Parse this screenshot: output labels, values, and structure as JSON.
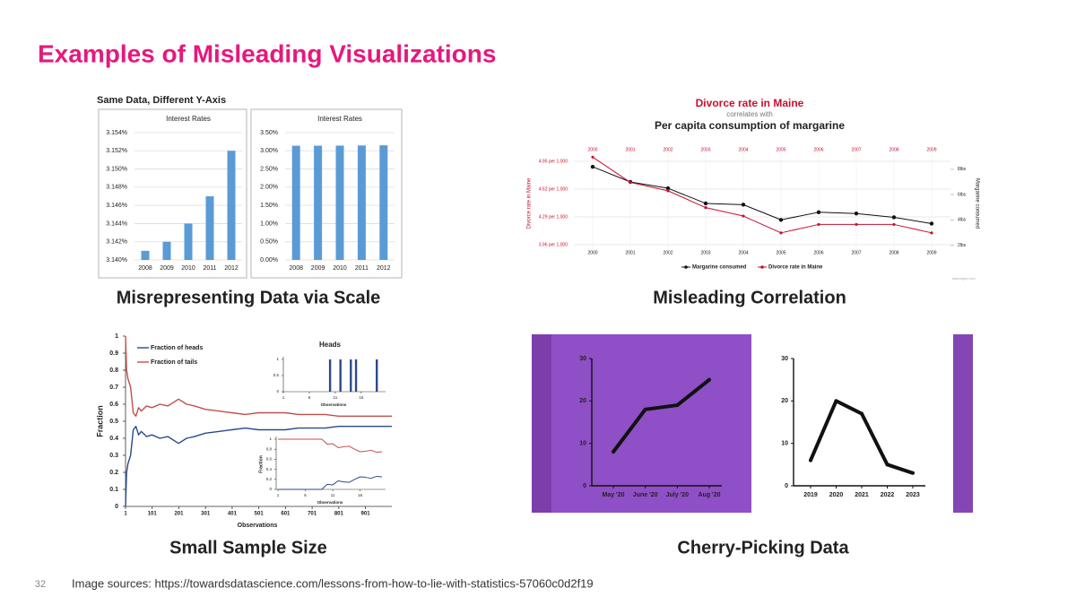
{
  "title": "Examples of Misleading Visualizations",
  "panels": [
    {
      "caption": "Misrepresenting Data via Scale",
      "heading": "Same Data, Different Y-Axis",
      "chart_data": [
        {
          "type": "bar",
          "title": "Interest Rates",
          "categories": [
            "2008",
            "2009",
            "2010",
            "2011",
            "2012"
          ],
          "values": [
            3.141,
            3.142,
            3.144,
            3.147,
            3.152
          ],
          "color": "#5b9bd5",
          "ylim": [
            3.14,
            3.154
          ],
          "yticks": [
            {
              "value": 3.14,
              "label": "3.140%"
            },
            {
              "value": 3.142,
              "label": "3.142%"
            },
            {
              "value": 3.144,
              "label": "3.144%"
            },
            {
              "value": 3.146,
              "label": "3.146%"
            },
            {
              "value": 3.148,
              "label": "3.148%"
            },
            {
              "value": 3.15,
              "label": "3.150%"
            },
            {
              "value": 3.152,
              "label": "3.152%"
            },
            {
              "value": 3.154,
              "label": "3.154%"
            }
          ],
          "grid": true
        },
        {
          "type": "bar",
          "title": "Interest Rates",
          "categories": [
            "2008",
            "2009",
            "2010",
            "2011",
            "2012"
          ],
          "values": [
            3.141,
            3.142,
            3.144,
            3.147,
            3.152
          ],
          "color": "#5b9bd5",
          "ylim": [
            0,
            3.5
          ],
          "yticks": [
            {
              "value": 0,
              "label": "0.00%"
            },
            {
              "value": 0.5,
              "label": "0.50%"
            },
            {
              "value": 1,
              "label": "1.00%"
            },
            {
              "value": 1.5,
              "label": "1.50%"
            },
            {
              "value": 2,
              "label": "2.00%"
            },
            {
              "value": 2.5,
              "label": "2.50%"
            },
            {
              "value": 3,
              "label": "3.00%"
            },
            {
              "value": 3.5,
              "label": "3.50%"
            }
          ],
          "grid": true
        }
      ]
    },
    {
      "caption": "Misleading Correlation",
      "chart_data": {
        "type": "line",
        "title": "Divorce rate in Maine",
        "connector": "correlates with",
        "subtitle": "Per capita consumption of margarine",
        "x": [
          2000,
          2001,
          2002,
          2003,
          2004,
          2005,
          2006,
          2007,
          2008,
          2009
        ],
        "xlim": [
          1999.5,
          2009.5
        ],
        "ylabel": "Divorce rate in Maine",
        "y2label": "Margarine consumed",
        "series": [
          {
            "name": "Margarine consumed",
            "color": "#111111",
            "axis": "y2",
            "values": [
              8.2,
              7.0,
              6.5,
              5.3,
              5.2,
              4.0,
              4.6,
              4.5,
              4.2,
              3.7
            ]
          },
          {
            "name": "Divorce rate in Maine",
            "color": "#c8102e",
            "values": [
              5.0,
              4.7,
              4.6,
              4.4,
              4.3,
              4.1,
              4.2,
              4.2,
              4.2,
              4.1
            ]
          }
        ],
        "ylim": [
          3.85,
          5.05
        ],
        "yticks": [
          {
            "value": 3.96,
            "label": "3.96 per 1,000"
          },
          {
            "value": 4.29,
            "label": "4.29 per 1,000"
          },
          {
            "value": 4.62,
            "label": "4.62 per 1,000"
          },
          {
            "value": 4.95,
            "label": "4.95 per 1,000"
          }
        ],
        "y2lim": [
          1.3,
          9.3
        ],
        "y2ticks": [
          {
            "value": 2,
            "label": "2lbs"
          },
          {
            "value": 4,
            "label": "4lbs"
          },
          {
            "value": 6,
            "label": "6lbs"
          },
          {
            "value": 8,
            "label": "8lbs"
          }
        ],
        "grid": true,
        "source": "tylervigen.com"
      }
    },
    {
      "caption": "Small Sample Size",
      "chart_data": [
        {
          "type": "line",
          "xlabel": "Observations",
          "ylabel": "Fraction",
          "x": [
            1,
            5,
            10,
            20,
            30,
            40,
            50,
            60,
            80,
            100,
            130,
            160,
            200,
            230,
            260,
            300,
            350,
            400,
            450,
            500,
            550,
            600,
            650,
            700,
            750,
            800,
            850,
            900,
            950,
            1000
          ],
          "series": [
            {
              "name": "Fraction of heads",
              "color": "#2b4a8a",
              "values": [
                0,
                0.2,
                0.25,
                0.3,
                0.45,
                0.47,
                0.42,
                0.44,
                0.41,
                0.42,
                0.4,
                0.41,
                0.37,
                0.4,
                0.41,
                0.43,
                0.44,
                0.45,
                0.46,
                0.45,
                0.45,
                0.45,
                0.46,
                0.46,
                0.46,
                0.47,
                0.47,
                0.47,
                0.47,
                0.47
              ]
            },
            {
              "name": "Fraction of tails",
              "color": "#c0504d",
              "values": [
                1,
                0.8,
                0.75,
                0.7,
                0.55,
                0.53,
                0.58,
                0.56,
                0.59,
                0.58,
                0.6,
                0.59,
                0.63,
                0.6,
                0.59,
                0.57,
                0.56,
                0.55,
                0.54,
                0.55,
                0.55,
                0.55,
                0.54,
                0.54,
                0.54,
                0.53,
                0.53,
                0.53,
                0.53,
                0.53
              ]
            }
          ],
          "xlim": [
            1,
            1000
          ],
          "xticks": [
            1,
            101,
            201,
            301,
            401,
            501,
            601,
            701,
            801,
            901
          ],
          "ylim": [
            0,
            1
          ],
          "yticks": [
            0,
            0.1,
            0.2,
            0.3,
            0.4,
            0.5,
            0.6,
            0.7,
            0.8,
            0.9,
            1
          ]
        },
        {
          "type": "bar",
          "title": "Heads",
          "xlabel": "Observations",
          "x": [
            10,
            12,
            14,
            15,
            19
          ],
          "values": [
            1,
            1,
            1,
            1,
            1
          ],
          "color": "#2b4a8a",
          "xlim": [
            1,
            20
          ],
          "xticks": [
            1,
            6,
            11,
            16
          ],
          "ylim": [
            0,
            1
          ],
          "yticks": [
            0,
            0.5,
            1
          ]
        },
        {
          "type": "line",
          "xlabel": "Observations",
          "ylabel": "Fraction",
          "x": [
            1,
            2,
            3,
            4,
            5,
            6,
            7,
            8,
            9,
            10,
            11,
            12,
            13,
            14,
            15,
            16,
            17,
            18,
            19,
            20
          ],
          "series": [
            {
              "color": "#2b4a8a",
              "values": [
                0,
                0,
                0,
                0,
                0,
                0,
                0,
                0,
                0,
                0.1,
                0.09,
                0.17,
                0.15,
                0.14,
                0.2,
                0.25,
                0.24,
                0.22,
                0.26,
                0.25
              ]
            },
            {
              "color": "#c0504d",
              "values": [
                1,
                1,
                1,
                1,
                1,
                1,
                1,
                1,
                1,
                0.9,
                0.91,
                0.83,
                0.85,
                0.86,
                0.8,
                0.75,
                0.76,
                0.78,
                0.74,
                0.75
              ]
            }
          ],
          "xlim": [
            1,
            20
          ],
          "xticks": [
            1,
            6,
            11,
            16
          ],
          "ylim": [
            0,
            1
          ],
          "yticks": [
            0,
            0.2,
            0.4,
            0.6,
            0.8,
            1
          ]
        }
      ]
    },
    {
      "caption": "Cherry-Picking Data",
      "chart_data": [
        {
          "type": "line",
          "categories": [
            "May '20",
            "June '20",
            "July '20",
            "Aug '20"
          ],
          "values": [
            8,
            18,
            19,
            25
          ],
          "color": "#111111",
          "ylim": [
            0,
            30
          ],
          "yticks": [
            0,
            10,
            20,
            30
          ]
        },
        {
          "type": "line",
          "categories": [
            "2019",
            "2020",
            "2021",
            "2022",
            "2023"
          ],
          "values": [
            6,
            20,
            17,
            5,
            3
          ],
          "color": "#111111",
          "ylim": [
            0,
            30
          ],
          "yticks": [
            0,
            10,
            20,
            30
          ]
        }
      ]
    }
  ],
  "page_number": "32",
  "source": "Image sources: https://towardsdatascience.com/lessons-from-how-to-lie-with-statistics-57060c0d2f19"
}
